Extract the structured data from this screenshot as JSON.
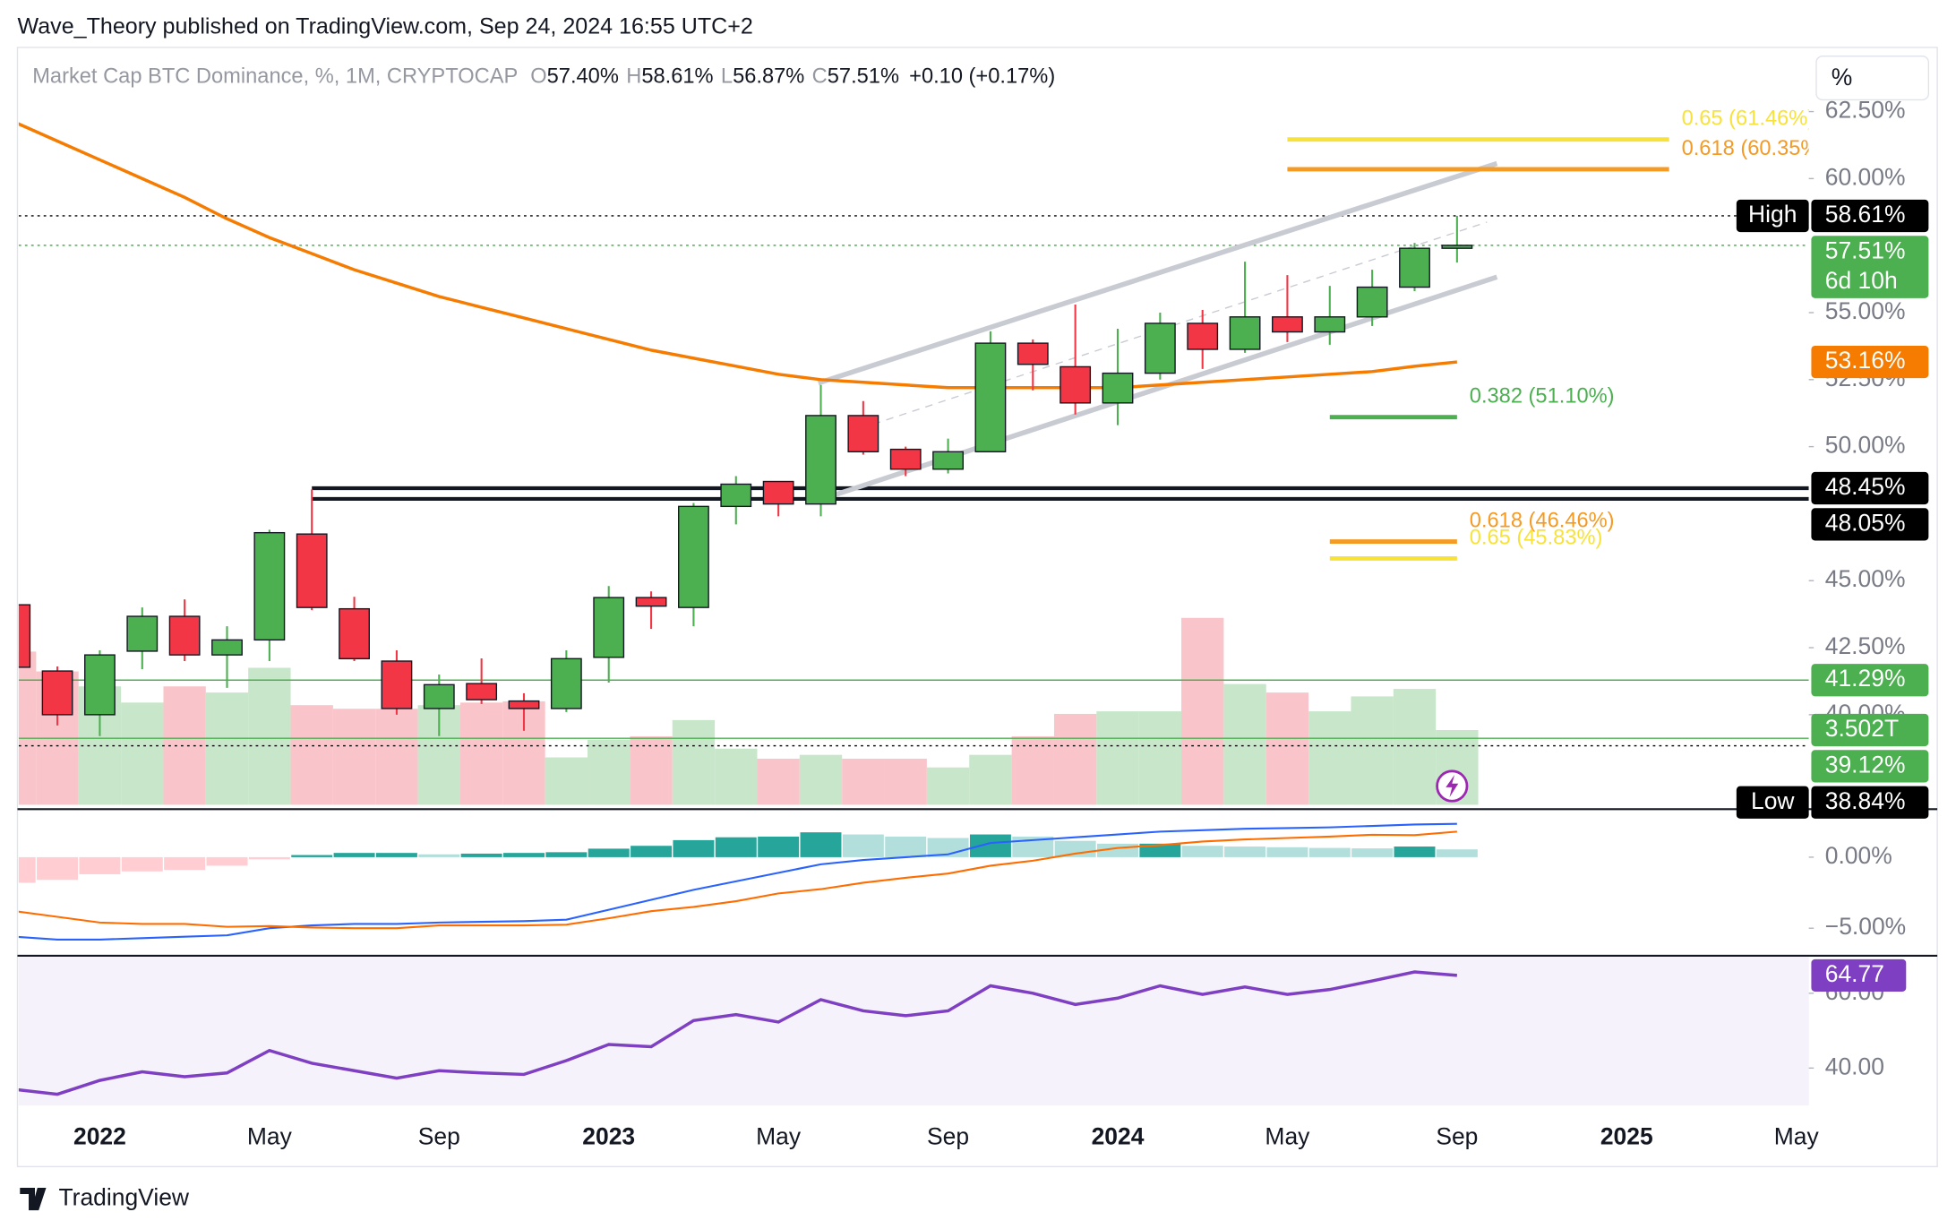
{
  "header": {
    "publisher": "Wave_Theory published on TradingView.com, Sep 24, 2024 16:55 UTC+2"
  },
  "footer": {
    "brand": "TradingView"
  },
  "chart_data": [
    {
      "type": "candlestick",
      "title": "Market Cap BTC Dominance, %, 1M, CRYPTOCAP",
      "ohlc_legend": [
        {
          "key": "O",
          "label": "57.40%",
          "value": 57.4
        },
        {
          "key": "H",
          "label": "58.61%",
          "value": 58.61
        },
        {
          "key": "L",
          "label": "56.87%",
          "value": 56.87
        },
        {
          "key": "C",
          "label": "57.51%",
          "value": 57.51
        }
      ],
      "change_label": "+0.10 (+0.17%)",
      "scale_button": "%",
      "x": [
        "2021-11",
        "2021-12",
        "2022-01",
        "2022-02",
        "2022-03",
        "2022-04",
        "2022-05",
        "2022-06",
        "2022-07",
        "2022-08",
        "2022-09",
        "2022-10",
        "2022-11",
        "2022-12",
        "2023-01",
        "2023-02",
        "2023-03",
        "2023-04",
        "2023-05",
        "2023-06",
        "2023-07",
        "2023-08",
        "2023-09",
        "2023-10",
        "2023-11",
        "2023-12",
        "2024-01",
        "2024-02",
        "2024-03",
        "2024-04",
        "2024-05",
        "2024-06",
        "2024-07",
        "2024-08",
        "2024-09"
      ],
      "open": [
        44.1,
        41.63,
        40.0,
        42.37,
        43.67,
        42.23,
        42.79,
        46.74,
        43.95,
        42.0,
        40.23,
        41.16,
        40.51,
        40.23,
        42.14,
        44.37,
        44.0,
        47.77,
        48.7,
        47.86,
        51.16,
        49.9,
        49.16,
        49.81,
        53.86,
        52.98,
        51.63,
        52.74,
        54.6,
        53.63,
        54.84,
        54.28,
        54.84,
        55.95,
        57.4
      ],
      "high": [
        44.3,
        41.8,
        42.4,
        44.0,
        44.3,
        43.3,
        46.9,
        48.4,
        44.4,
        42.4,
        41.5,
        42.1,
        40.8,
        42.4,
        44.8,
        44.6,
        47.9,
        48.9,
        48.7,
        52.3,
        51.7,
        50.0,
        50.3,
        54.3,
        54.0,
        55.3,
        54.4,
        55.0,
        55.1,
        56.9,
        56.4,
        56.0,
        56.6,
        57.6,
        58.61
      ],
      "low": [
        41.5,
        39.6,
        39.2,
        41.7,
        42.0,
        41.0,
        42.0,
        43.9,
        42.0,
        40.0,
        39.2,
        40.4,
        39.4,
        40.1,
        41.2,
        43.2,
        43.3,
        47.1,
        47.4,
        47.4,
        49.7,
        48.9,
        49.0,
        49.8,
        52.1,
        51.2,
        50.8,
        52.5,
        52.9,
        53.5,
        53.9,
        53.8,
        54.5,
        55.8,
        56.87
      ],
      "close": [
        41.77,
        40.0,
        42.23,
        43.67,
        42.23,
        42.79,
        46.79,
        44.0,
        42.09,
        40.23,
        41.12,
        40.56,
        40.23,
        42.09,
        44.37,
        44.05,
        47.77,
        48.6,
        47.86,
        51.16,
        49.81,
        49.16,
        49.81,
        53.86,
        53.07,
        51.63,
        52.74,
        54.6,
        53.63,
        54.84,
        54.28,
        54.84,
        55.95,
        57.4,
        57.51
      ],
      "up_color": "#4caf50",
      "down_color": "#f23645",
      "ylim": [
        36.5,
        64.8
      ],
      "yticks": [
        {
          "value": 62.5,
          "label": "62.50%"
        },
        {
          "value": 60,
          "label": "60.00%"
        },
        {
          "value": 55,
          "label": "55.00%"
        },
        {
          "value": 52.5,
          "label": "52.50%"
        },
        {
          "value": 50,
          "label": "50.00%"
        },
        {
          "value": 45,
          "label": "45.00%"
        },
        {
          "value": 42.5,
          "label": "42.50%"
        },
        {
          "value": 40,
          "label": "40.00%"
        }
      ],
      "xticks": [
        {
          "value": "2022-01",
          "label": "2022"
        },
        {
          "value": "2022-05",
          "label": "May"
        },
        {
          "value": "2022-09",
          "label": "Sep"
        },
        {
          "value": "2023-01",
          "label": "2023"
        },
        {
          "value": "2023-05",
          "label": "May"
        },
        {
          "value": "2023-09",
          "label": "Sep"
        },
        {
          "value": "2024-01",
          "label": "2024"
        },
        {
          "value": "2024-05",
          "label": "May"
        },
        {
          "value": "2024-09",
          "label": "Sep"
        },
        {
          "value": "2025-01",
          "label": "2025"
        },
        {
          "value": "2025-05",
          "label": "May"
        }
      ],
      "moving_average": {
        "color": "#f57c00",
        "values": [
          62.1,
          61.4,
          60.7,
          60.0,
          59.3,
          58.5,
          57.8,
          57.2,
          56.6,
          56.1,
          55.6,
          55.2,
          54.8,
          54.4,
          54.0,
          53.6,
          53.3,
          53.0,
          52.7,
          52.5,
          52.4,
          52.3,
          52.2,
          52.2,
          52.2,
          52.2,
          52.2,
          52.3,
          52.4,
          52.5,
          52.6,
          52.7,
          52.8,
          53.0,
          53.16
        ]
      },
      "volume": {
        "values": [
          7.18,
          6.25,
          5.55,
          4.79,
          5.55,
          5.26,
          6.42,
          4.67,
          4.5,
          4.5,
          4.67,
          4.79,
          4.85,
          2.22,
          3.04,
          3.21,
          3.97,
          2.63,
          2.16,
          2.34,
          2.16,
          2.16,
          1.75,
          2.34,
          3.21,
          4.26,
          4.38,
          4.38,
          8.76,
          5.66,
          5.26,
          4.38,
          5.08,
          5.43,
          3.502
        ],
        "last_label": "3.502T",
        "up_color": "#c8e6c9",
        "down_color": "#fac5ca",
        "label_color": "#4caf50"
      },
      "price_labels": [
        {
          "tag": "High",
          "label": "58.61%",
          "value": 58.61,
          "color": "#000000",
          "line": "dotted"
        },
        {
          "label": "57.51%",
          "sub": "6d 10h",
          "value": 57.51,
          "color": "#4caf50",
          "line": "dotted"
        },
        {
          "label": "53.16%",
          "value": 53.16,
          "color": "#f57c00"
        },
        {
          "label": "48.45%",
          "value": 48.45,
          "color": "#000000",
          "line": "solid",
          "line_start": "2022-06"
        },
        {
          "label": "48.05%",
          "value": 48.05,
          "color": "#000000",
          "line": "solid",
          "line_start": "2022-06"
        },
        {
          "label": "41.29%",
          "value": 41.29,
          "color": "#4caf50",
          "line": "thin"
        },
        {
          "label": "39.12%",
          "value": 39.12,
          "color": "#4caf50",
          "line": "thin"
        },
        {
          "tag": "Low",
          "label": "38.84%",
          "value": 38.84,
          "color": "#000000",
          "line": "dotted"
        }
      ],
      "fib_levels": [
        {
          "label": "0.65 (61.46%)",
          "value": 61.46,
          "color": "#f7e23b",
          "from": "2024-05",
          "to": "2025-02"
        },
        {
          "label": "0.618 (60.35%)",
          "value": 60.35,
          "color": "#f59a23",
          "from": "2024-05",
          "to": "2025-02"
        },
        {
          "label": "0.382 (51.10%)",
          "value": 51.1,
          "color": "#4caf50",
          "from": "2024-06",
          "to": "2024-09"
        },
        {
          "label": "0.618 (46.46%)",
          "value": 46.46,
          "color": "#f59a23",
          "from": "2024-06",
          "to": "2024-09"
        },
        {
          "label": "0.65 (45.83%)",
          "value": 45.83,
          "color": "#f7e23b",
          "from": "2024-06",
          "to": "2024-09"
        }
      ]
    },
    {
      "type": "macd",
      "ylim": [
        -6.85,
        3.25
      ],
      "yticks": [
        {
          "value": 0,
          "label": "0.00%"
        },
        {
          "value": -5,
          "label": "−5.00%"
        }
      ],
      "histogram": [
        -1.8,
        -1.6,
        -1.2,
        -1.0,
        -0.9,
        -0.6,
        -0.15,
        0.15,
        0.3,
        0.3,
        0.2,
        0.25,
        0.3,
        0.35,
        0.6,
        0.8,
        1.2,
        1.4,
        1.45,
        1.75,
        1.6,
        1.45,
        1.35,
        1.6,
        1.45,
        1.15,
        0.95,
        0.95,
        0.8,
        0.75,
        0.7,
        0.65,
        0.62,
        0.75,
        0.55
      ],
      "series": [
        {
          "name": "MACD",
          "color": "#2962ff",
          "values": [
            -5.6,
            -5.8,
            -5.8,
            -5.7,
            -5.6,
            -5.5,
            -5.0,
            -4.8,
            -4.7,
            -4.7,
            -4.6,
            -4.55,
            -4.5,
            -4.4,
            -3.7,
            -3.0,
            -2.3,
            -1.7,
            -1.1,
            -0.5,
            -0.2,
            0.0,
            0.2,
            1.0,
            1.2,
            1.4,
            1.6,
            1.8,
            1.9,
            2.0,
            2.05,
            2.1,
            2.2,
            2.3,
            2.35
          ]
        },
        {
          "name": "Signal",
          "color": "#ff6d00",
          "values": [
            -3.8,
            -4.2,
            -4.6,
            -4.7,
            -4.7,
            -4.9,
            -4.85,
            -4.95,
            -5.0,
            -5.0,
            -4.8,
            -4.8,
            -4.8,
            -4.75,
            -4.3,
            -3.8,
            -3.5,
            -3.1,
            -2.55,
            -2.25,
            -1.8,
            -1.45,
            -1.15,
            -0.6,
            -0.25,
            0.25,
            0.65,
            0.85,
            1.1,
            1.25,
            1.35,
            1.45,
            1.58,
            1.55,
            1.8
          ]
        }
      ]
    },
    {
      "type": "rsi",
      "ylim": [
        30,
        69.7
      ],
      "yticks": [
        {
          "value": 60,
          "label": "60.00"
        },
        {
          "value": 40,
          "label": "40.00"
        }
      ],
      "color": "#7e3fc2",
      "values": [
        34.3,
        33,
        36.7,
        39,
        37.7,
        38.7,
        44.7,
        41.3,
        39.3,
        37.3,
        39.3,
        38.7,
        38.3,
        42,
        46.3,
        45.7,
        52.7,
        54.3,
        52.3,
        58.3,
        55.3,
        54,
        55.3,
        62,
        60,
        57,
        58.7,
        62,
        59.7,
        61.7,
        59.7,
        61,
        63.3,
        65.7,
        64.77
      ],
      "last_label": "64.77"
    }
  ]
}
